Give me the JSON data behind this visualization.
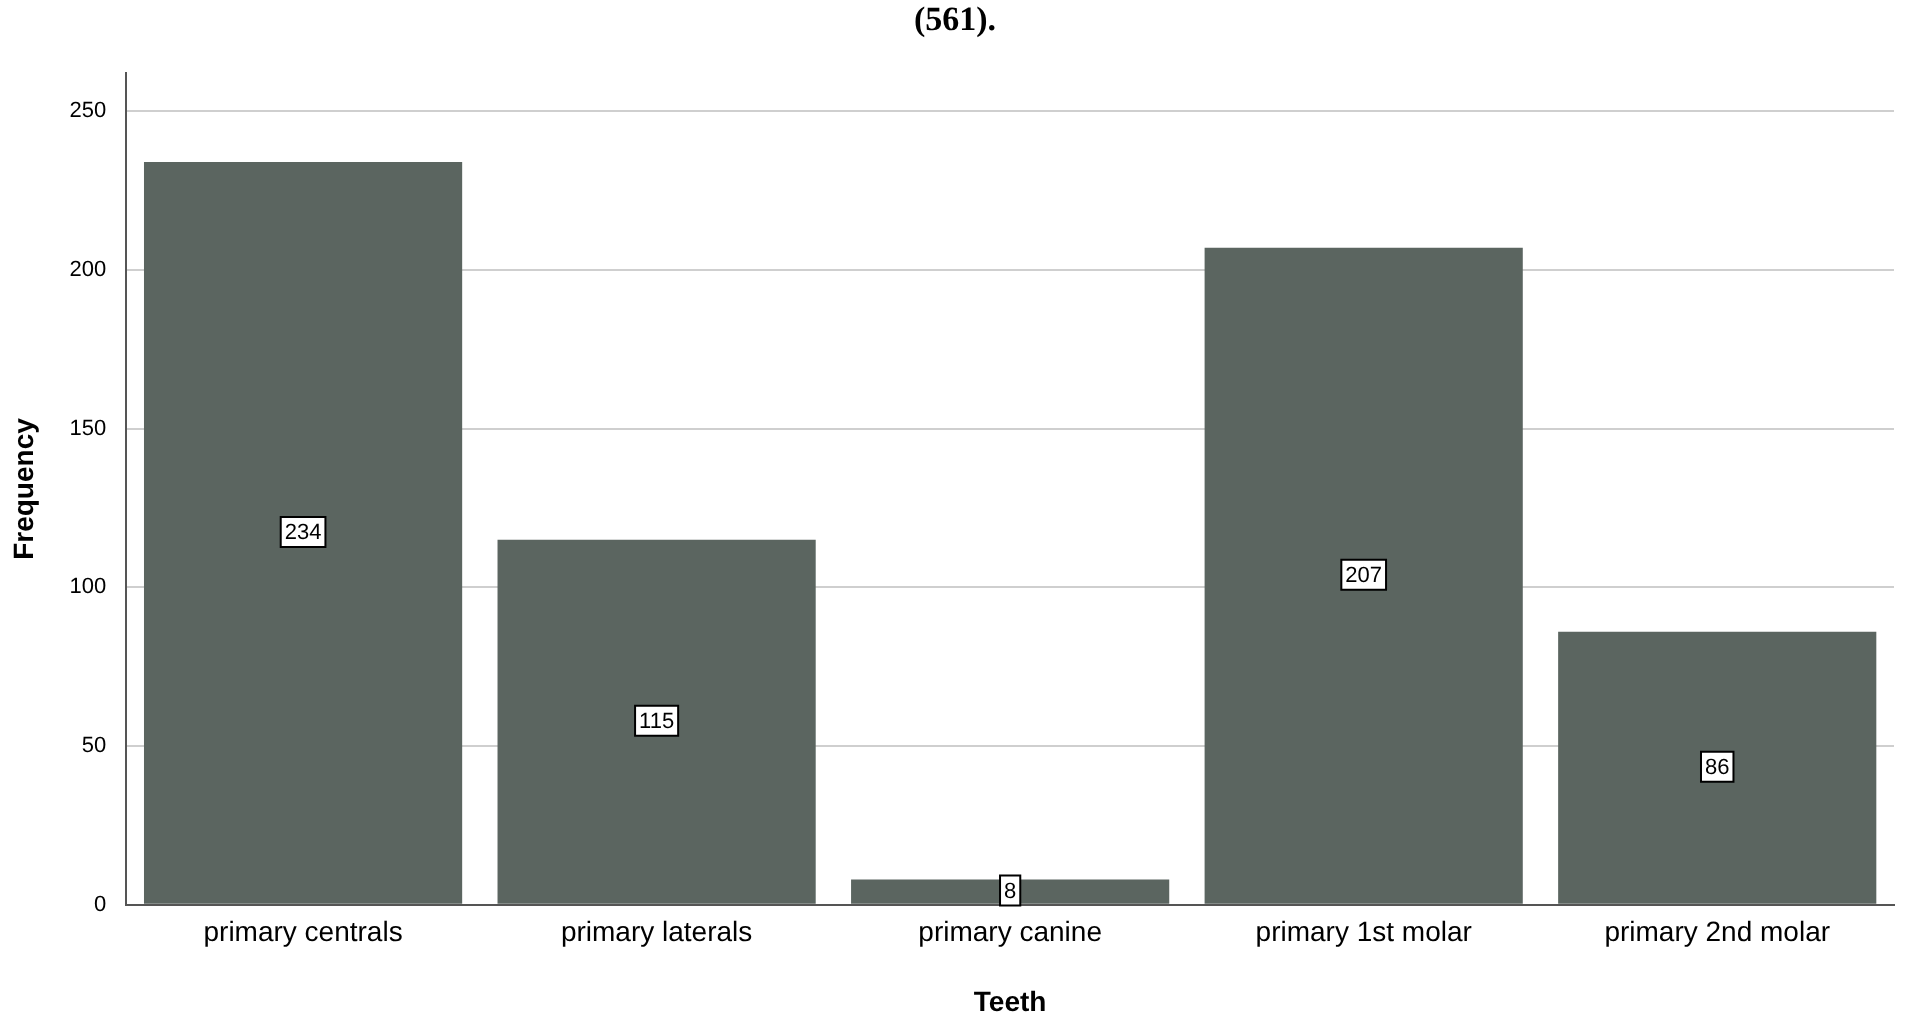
{
  "chart_data": {
    "type": "bar",
    "title": "(561).",
    "xlabel": "Teeth",
    "ylabel": "Frequency",
    "categories": [
      "primary centrals",
      "primary laterals",
      "primary canine",
      "primary 1st molar",
      "primary 2nd molar"
    ],
    "values": [
      234,
      115,
      8,
      207,
      86
    ],
    "color": "#5b6560",
    "ylim": [
      0,
      262
    ],
    "yticks": [
      0,
      50,
      100,
      150,
      200,
      250
    ],
    "grid": "y",
    "data_labels": true
  }
}
